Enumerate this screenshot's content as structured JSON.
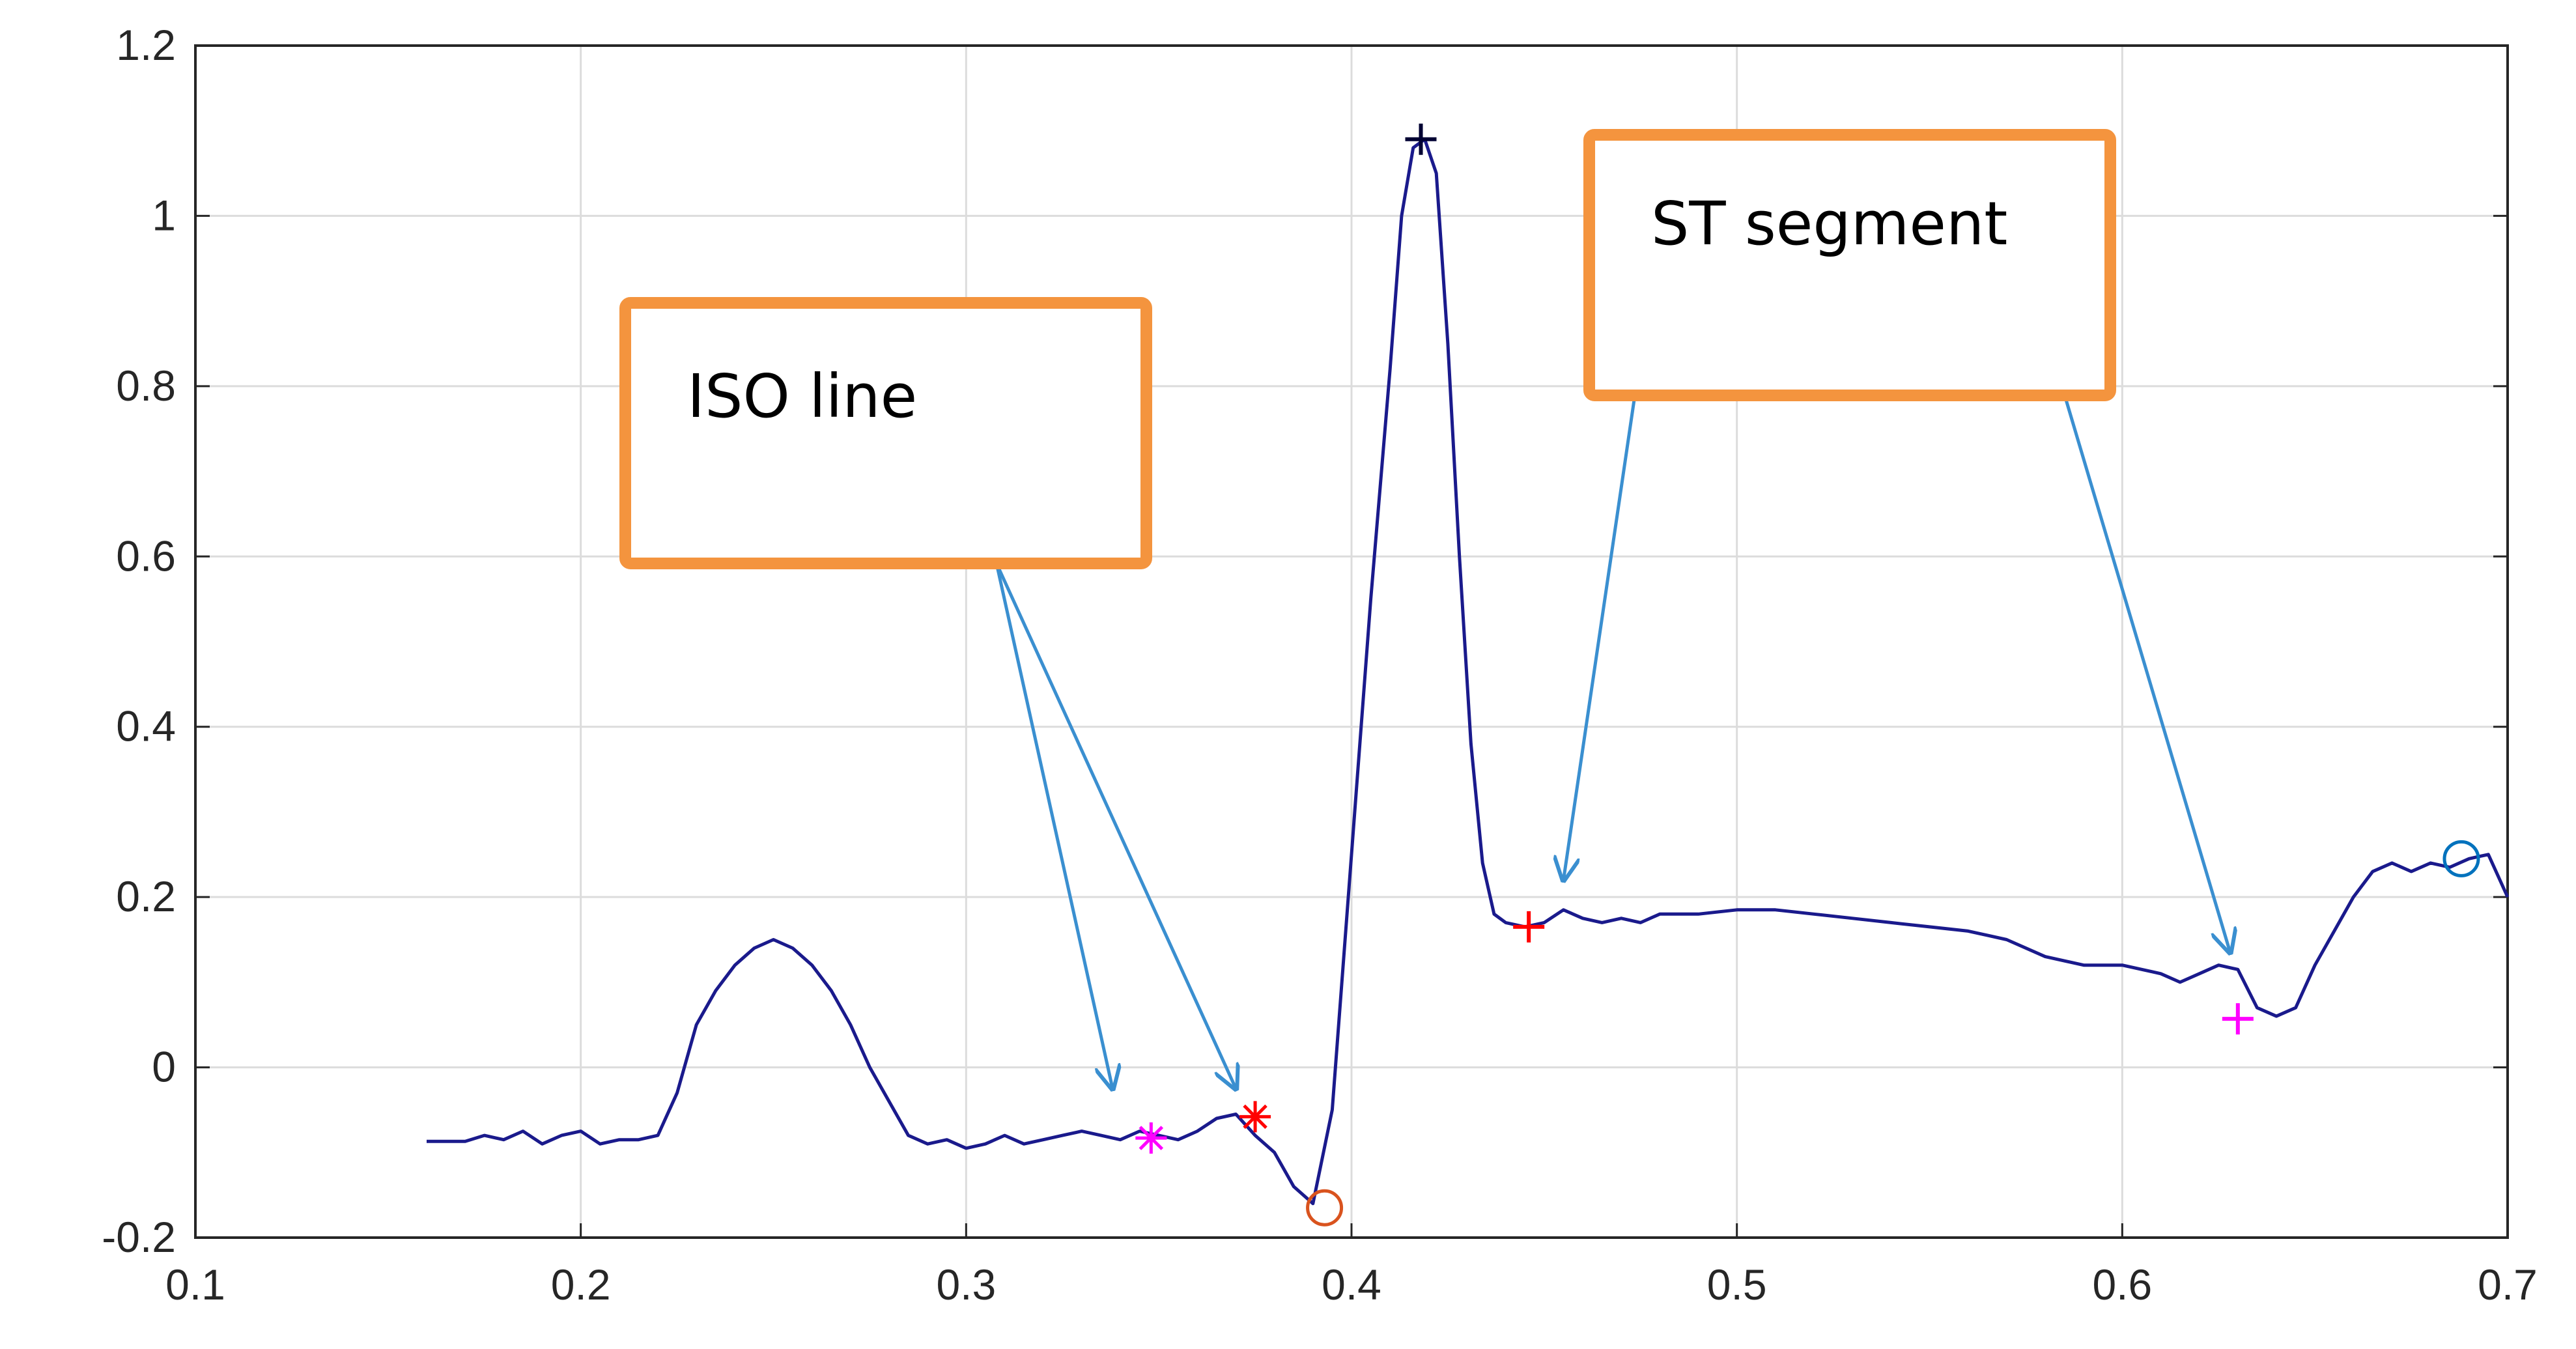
{
  "chart_data": {
    "type": "line",
    "title": "",
    "xlabel": "",
    "ylabel": "",
    "xlim": [
      0.1,
      0.7
    ],
    "ylim": [
      -0.2,
      1.2
    ],
    "xticks": [
      "0.1",
      "0.2",
      "0.3",
      "0.4",
      "0.5",
      "0.6",
      "0.7"
    ],
    "yticks": [
      "-0.2",
      "0",
      "0.2",
      "0.4",
      "0.6",
      "0.8",
      "1",
      "1.2"
    ],
    "grid": true,
    "line_color": "#1a1a8c",
    "series": [
      {
        "x": [
          0.16,
          0.17,
          0.175,
          0.18,
          0.185,
          0.19,
          0.195,
          0.2,
          0.205,
          0.21,
          0.215,
          0.22,
          0.225,
          0.23,
          0.235,
          0.24,
          0.245,
          0.25,
          0.255,
          0.26,
          0.265,
          0.27,
          0.275,
          0.28,
          0.285,
          0.29,
          0.295,
          0.3,
          0.305,
          0.31,
          0.315,
          0.32,
          0.325,
          0.33,
          0.335,
          0.34,
          0.345,
          0.35,
          0.355,
          0.36,
          0.365,
          0.37,
          0.375,
          0.38,
          0.385,
          0.39,
          0.395,
          0.4,
          0.405,
          0.41,
          0.413,
          0.416,
          0.419,
          0.422,
          0.425,
          0.428,
          0.431,
          0.434,
          0.437,
          0.44,
          0.445,
          0.45,
          0.455,
          0.46,
          0.465,
          0.47,
          0.475,
          0.48,
          0.49,
          0.5,
          0.51,
          0.52,
          0.53,
          0.54,
          0.55,
          0.56,
          0.57,
          0.58,
          0.59,
          0.6,
          0.61,
          0.615,
          0.62,
          0.625,
          0.63,
          0.635,
          0.64,
          0.645,
          0.65,
          0.655,
          0.66,
          0.665,
          0.67,
          0.675,
          0.68,
          0.685,
          0.69,
          0.695,
          0.7
        ],
        "y": [
          -0.087,
          -0.087,
          -0.08,
          -0.085,
          -0.075,
          -0.09,
          -0.08,
          -0.075,
          -0.09,
          -0.085,
          -0.085,
          -0.08,
          -0.03,
          0.05,
          0.09,
          0.12,
          0.14,
          0.15,
          0.14,
          0.12,
          0.09,
          0.05,
          0.0,
          -0.04,
          -0.08,
          -0.09,
          -0.085,
          -0.095,
          -0.09,
          -0.08,
          -0.09,
          -0.085,
          -0.08,
          -0.075,
          -0.08,
          -0.085,
          -0.075,
          -0.08,
          -0.085,
          -0.075,
          -0.06,
          -0.055,
          -0.08,
          -0.1,
          -0.14,
          -0.16,
          -0.05,
          0.25,
          0.55,
          0.82,
          1.0,
          1.08,
          1.09,
          1.05,
          0.85,
          0.6,
          0.38,
          0.24,
          0.18,
          0.17,
          0.165,
          0.17,
          0.185,
          0.175,
          0.17,
          0.175,
          0.17,
          0.18,
          0.18,
          0.185,
          0.185,
          0.18,
          0.175,
          0.17,
          0.165,
          0.16,
          0.15,
          0.13,
          0.12,
          0.12,
          0.11,
          0.1,
          0.11,
          0.12,
          0.115,
          0.07,
          0.06,
          0.07,
          0.12,
          0.16,
          0.2,
          0.23,
          0.24,
          0.23,
          0.24,
          0.235,
          0.245,
          0.25,
          0.2
        ]
      }
    ],
    "markers": [
      {
        "x": 0.418,
        "y": 1.09,
        "symbol": "+",
        "color": "#000033"
      },
      {
        "x": 0.393,
        "y": -0.165,
        "symbol": "o",
        "color": "#d9531e"
      },
      {
        "x": 0.348,
        "y": -0.083,
        "symbol": "*",
        "color": "#ff00ff"
      },
      {
        "x": 0.375,
        "y": -0.058,
        "symbol": "*",
        "color": "#ff0000"
      },
      {
        "x": 0.446,
        "y": 0.165,
        "symbol": "+",
        "color": "#ff0000"
      },
      {
        "x": 0.63,
        "y": 0.057,
        "symbol": "+",
        "color": "#ff00ff"
      },
      {
        "x": 0.688,
        "y": 0.245,
        "symbol": "o",
        "color": "#0072bd"
      }
    ],
    "annotations": [
      {
        "text": "ISO line",
        "box_color": "#f4943e",
        "arrow_color": "#3a8fd0",
        "targets": [
          {
            "x": 0.338,
            "y": -0.025
          },
          {
            "x": 0.37,
            "y": -0.025
          }
        ]
      },
      {
        "text": "ST segment",
        "box_color": "#f4943e",
        "arrow_color": "#3a8fd0",
        "targets": [
          {
            "x": 0.455,
            "y": 0.22
          },
          {
            "x": 0.628,
            "y": 0.135
          }
        ]
      }
    ]
  }
}
